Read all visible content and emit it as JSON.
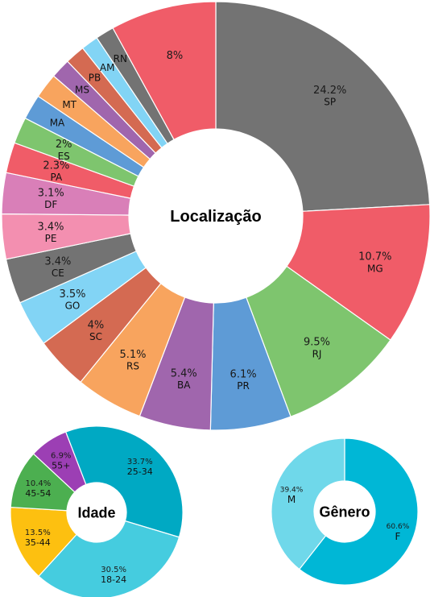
{
  "chart_data": [
    {
      "type": "pie",
      "variant": "donut",
      "title": "Localização",
      "slices": [
        {
          "label": "SP",
          "value": 24.2,
          "value_label": "24.2%",
          "color": "#737373"
        },
        {
          "label": "MG",
          "value": 10.7,
          "value_label": "10.7%",
          "color": "#f05c68"
        },
        {
          "label": "RJ",
          "value": 9.5,
          "value_label": "9.5%",
          "color": "#7ec56e"
        },
        {
          "label": "PR",
          "value": 6.1,
          "value_label": "6.1%",
          "color": "#5e9bd6"
        },
        {
          "label": "BA",
          "value": 5.4,
          "value_label": "5.4%",
          "color": "#a066ad"
        },
        {
          "label": "RS",
          "value": 5.1,
          "value_label": "5.1%",
          "color": "#f8a45e"
        },
        {
          "label": "SC",
          "value": 4.0,
          "value_label": "4%",
          "color": "#d46a52"
        },
        {
          "label": "GO",
          "value": 3.5,
          "value_label": "3.5%",
          "color": "#82d4f5"
        },
        {
          "label": "CE",
          "value": 3.4,
          "value_label": "3.4%",
          "color": "#737373"
        },
        {
          "label": "PE",
          "value": 3.4,
          "value_label": "3.4%",
          "color": "#f38fb0"
        },
        {
          "label": "DF",
          "value": 3.1,
          "value_label": "3.1%",
          "color": "#d97fb8"
        },
        {
          "label": "PA",
          "value": 2.3,
          "value_label": "2.3%",
          "color": "#f05c68"
        },
        {
          "label": "ES",
          "value": 2.0,
          "value_label": "2%",
          "color": "#7ec56e"
        },
        {
          "label": "MA",
          "value": 1.9,
          "value_label": "",
          "color": "#5e9bd6"
        },
        {
          "label": "MT",
          "value": 1.9,
          "value_label": "",
          "color": "#f8a45e"
        },
        {
          "label": "MS",
          "value": 1.5,
          "value_label": "",
          "color": "#a066ad"
        },
        {
          "label": "PB",
          "value": 1.5,
          "value_label": "",
          "color": "#d46a52"
        },
        {
          "label": "AM",
          "value": 1.3,
          "value_label": "",
          "color": "#82d4f5"
        },
        {
          "label": "RN",
          "value": 1.4,
          "value_label": "",
          "color": "#737373"
        },
        {
          "label": "",
          "value": 8.0,
          "value_label": "8%",
          "color": "#f05c68"
        }
      ]
    },
    {
      "type": "pie",
      "variant": "donut",
      "title": "Idade",
      "slices": [
        {
          "label": "25-34",
          "value": 33.7,
          "value_label": "33.7%",
          "color": "#00a9c3"
        },
        {
          "label": "18-24",
          "value": 30.5,
          "value_label": "30.5%",
          "color": "#45ccdf"
        },
        {
          "label": "35-44",
          "value": 13.5,
          "value_label": "13.5%",
          "color": "#fdc010"
        },
        {
          "label": "45-54",
          "value": 10.4,
          "value_label": "10.4%",
          "color": "#4caf50"
        },
        {
          "label": "55+",
          "value": 6.9,
          "value_label": "6.9%",
          "color": "#9c3fb4"
        }
      ]
    },
    {
      "type": "pie",
      "variant": "donut",
      "title": "Gênero",
      "slices": [
        {
          "label": "F",
          "value": 60.6,
          "value_label": "60.6%",
          "color": "#00b7d6"
        },
        {
          "label": "M",
          "value": 39.4,
          "value_label": "39.4%",
          "color": "#6fd8ea"
        }
      ]
    }
  ]
}
